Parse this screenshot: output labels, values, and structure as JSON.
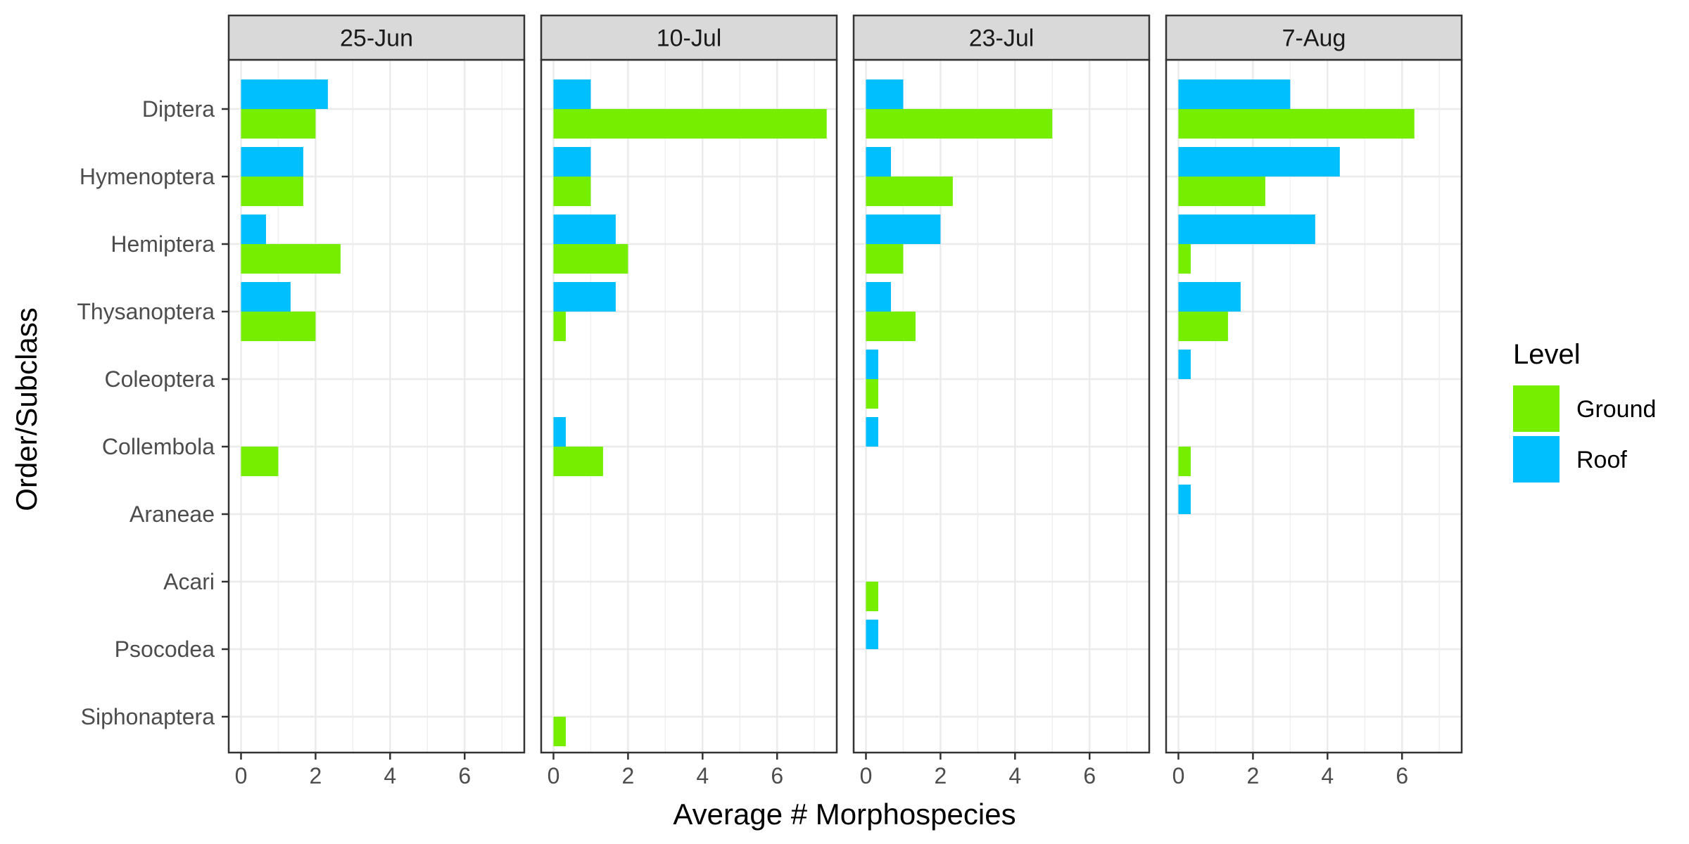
{
  "chart_data": {
    "type": "bar",
    "orientation": "horizontal",
    "facet_by": "date",
    "xlabel": "Average # Morphospecies",
    "ylabel": "Order/Subclass",
    "xlim": [
      -0.33,
      7.6
    ],
    "x_ticks": [
      0,
      2,
      4,
      6
    ],
    "grid": true,
    "legend": {
      "title": "Level",
      "position": "right",
      "entries": [
        "Ground",
        "Roof"
      ]
    },
    "colors": {
      "Ground": "#76EE00",
      "Roof": "#00BFFF"
    },
    "categories": [
      "Diptera",
      "Hymenoptera",
      "Hemiptera",
      "Thysanoptera",
      "Coleoptera",
      "Collembola",
      "Araneae",
      "Acari",
      "Psocodea",
      "Siphonaptera"
    ],
    "panels": [
      {
        "label": "25-Jun",
        "series": [
          {
            "name": "Ground",
            "values": [
              2.0,
              1.67,
              2.67,
              2.0,
              0,
              1.0,
              0,
              0,
              0,
              0
            ]
          },
          {
            "name": "Roof",
            "values": [
              2.33,
              1.67,
              0.67,
              1.33,
              0,
              0,
              0,
              0,
              0,
              0
            ]
          }
        ]
      },
      {
        "label": "10-Jul",
        "series": [
          {
            "name": "Ground",
            "values": [
              7.33,
              1.0,
              2.0,
              0.33,
              0,
              1.33,
              0,
              0,
              0,
              0.33
            ]
          },
          {
            "name": "Roof",
            "values": [
              1.0,
              1.0,
              1.67,
              1.67,
              0,
              0.33,
              0,
              0,
              0,
              0
            ]
          }
        ]
      },
      {
        "label": "23-Jul",
        "series": [
          {
            "name": "Ground",
            "values": [
              5.0,
              2.33,
              1.0,
              1.33,
              0.33,
              0,
              0,
              0.33,
              0,
              0
            ]
          },
          {
            "name": "Roof",
            "values": [
              1.0,
              0.67,
              2.0,
              0.67,
              0.33,
              0.33,
              0,
              0,
              0.33,
              0
            ]
          }
        ]
      },
      {
        "label": "7-Aug",
        "series": [
          {
            "name": "Ground",
            "values": [
              6.33,
              2.33,
              0.33,
              1.33,
              0,
              0.33,
              0,
              0,
              0,
              0
            ]
          },
          {
            "name": "Roof",
            "values": [
              3.0,
              4.33,
              3.67,
              1.67,
              0.33,
              0,
              0.33,
              0,
              0,
              0
            ]
          }
        ]
      }
    ]
  }
}
